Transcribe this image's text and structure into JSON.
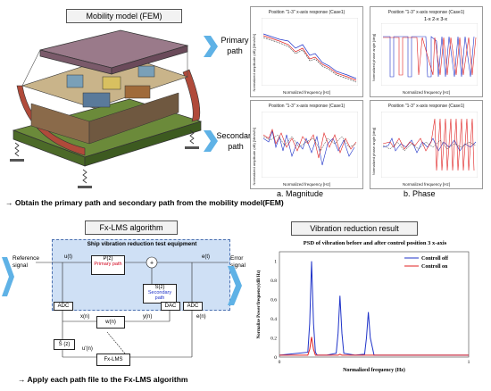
{
  "top": {
    "fem_title": "Mobility model (FEM)",
    "primary_path": [
      "Primary",
      "path"
    ],
    "secondary_path": [
      "Secondary",
      "path"
    ],
    "plots": [
      {
        "title": "Position \"1-3\" x-axis response (Case1)",
        "ylabel": "Normalized amplitude (dB) [Mm/s/N]",
        "xlabel": "Normalized frequency [Hz]"
      },
      {
        "title": "Position \"1-3\" x-axis response (Case1)",
        "ylabel": "Normalized phase angle [deg]",
        "xlabel": "Normalized frequency [Hz]"
      },
      {
        "title": "Position \"1-3\" x-axis response (Case1)",
        "ylabel": "Normalized amplitude (dB) [Mm/s/N]",
        "xlabel": "Normalized frequency [Hz]"
      },
      {
        "title": "Position \"1-3\" x-axis response (Case1)",
        "ylabel": "Normalized phase angle [deg]",
        "xlabel": "Normalized frequency [Hz]"
      }
    ],
    "legend": [
      "1-x",
      "2-x",
      "3-x"
    ],
    "caption_a": "a. Magnitude",
    "caption_b": "b. Phase",
    "result_text": "→ Obtain the primary path and secondary path from the mobility model(FEM)"
  },
  "bottom_left": {
    "title": "Fx-LMS algorithm",
    "equipment": "Ship vibration reduction test equipment",
    "reference": [
      "Reference",
      "signal"
    ],
    "error": [
      "Error",
      "signal"
    ],
    "u_n": "u(t)",
    "e_t": "e(t)",
    "p_z": "P(z)",
    "primary_path": "Primary path",
    "s_z": "S(z)",
    "secondary_path": "Secondary path",
    "adc1": "ADC",
    "dac": "DAC",
    "adc2": "ADC",
    "x_n": "x(n)",
    "w_n": "w(n)",
    "y_n": "y(n)",
    "e_n": "e(n)",
    "s_hat": "Ŝ (z)",
    "u_prime": "u'(n)",
    "fx_lms": "Fx-LMS",
    "apply_text": "→ Apply each path file to the Fx-LMS algorithm"
  },
  "bottom_right": {
    "title": "Vibration reduction result",
    "chart_data": {
      "type": "line",
      "title": "PSD of vibration before and after control position 3 x-axis",
      "xlabel": "Normalized frequency (Hz)",
      "ylabel": "Normalize Power/frequency(dB/Hz)",
      "x": [
        0,
        0.15,
        0.16,
        0.17,
        0.18,
        0.19,
        0.2,
        0.25,
        0.3,
        0.31,
        0.32,
        0.33,
        0.34,
        0.4,
        0.45,
        0.46,
        0.47,
        0.48,
        0.5,
        0.6,
        0.8,
        1.0
      ],
      "xlim": [
        0,
        1
      ],
      "ylim": [
        0,
        1.1
      ],
      "yticks": [
        0,
        0.2,
        0.4,
        0.6,
        0.8,
        1
      ],
      "xticks": [
        0,
        1
      ],
      "series": [
        {
          "name": "Controll off",
          "color": "#1f33c9",
          "values": [
            0.02,
            0.05,
            0.35,
            1.0,
            0.35,
            0.05,
            0.02,
            0.02,
            0.04,
            0.25,
            0.64,
            0.25,
            0.04,
            0.02,
            0.03,
            0.2,
            0.47,
            0.2,
            0.02,
            0.02,
            0.02,
            0.02
          ]
        },
        {
          "name": "Controll on",
          "color": "#e02020",
          "values": [
            0.02,
            0.02,
            0.08,
            0.21,
            0.08,
            0.02,
            0.02,
            0.02,
            0.02,
            0.02,
            0.03,
            0.02,
            0.02,
            0.02,
            0.02,
            0.02,
            0.02,
            0.02,
            0.02,
            0.02,
            0.02,
            0.02
          ]
        }
      ]
    }
  }
}
